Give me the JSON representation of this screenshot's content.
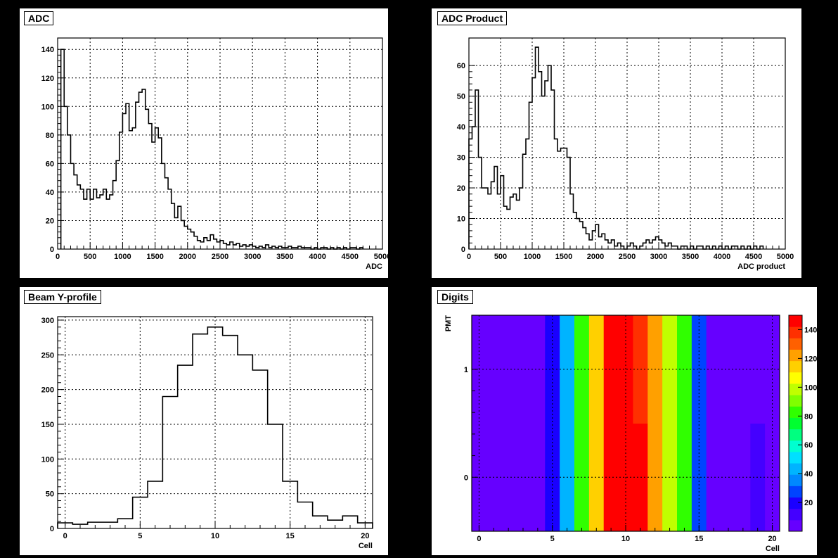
{
  "chart_data": [
    {
      "id": "adc",
      "type": "histogram",
      "title": "ADC",
      "xlabel": "ADC",
      "ylabel": "",
      "xlim": [
        0,
        5000
      ],
      "ylim": [
        0,
        148
      ],
      "xticks": [
        0,
        500,
        1000,
        1500,
        2000,
        2500,
        3000,
        3500,
        4000,
        4500,
        5000
      ],
      "yticks": [
        0,
        20,
        40,
        60,
        80,
        100,
        120,
        140
      ],
      "grid": true,
      "bin_width": 50,
      "x_start": 50,
      "values": [
        140,
        100,
        80,
        60,
        52,
        45,
        42,
        35,
        42,
        35,
        42,
        36,
        38,
        42,
        35,
        38,
        48,
        62,
        82,
        95,
        102,
        83,
        85,
        103,
        110,
        112,
        98,
        88,
        75,
        85,
        78,
        60,
        50,
        42,
        32,
        22,
        30,
        20,
        16,
        14,
        12,
        9,
        6,
        5,
        8,
        6,
        10,
        7,
        5,
        6,
        4,
        3,
        5,
        3,
        4,
        2,
        3,
        2,
        3,
        2,
        1,
        2,
        1,
        3,
        1,
        2,
        1,
        2,
        1,
        1,
        2,
        1,
        1,
        2,
        1,
        1,
        1,
        0,
        1,
        0,
        1,
        1,
        0,
        1,
        0,
        1,
        0,
        1,
        0,
        1,
        1,
        0,
        1
      ]
    },
    {
      "id": "adc-product",
      "type": "histogram",
      "title": "ADC Product",
      "xlabel": "ADC product",
      "ylabel": "",
      "xlim": [
        0,
        5000
      ],
      "ylim": [
        0,
        69
      ],
      "xticks": [
        0,
        500,
        1000,
        1500,
        2000,
        2500,
        3000,
        3500,
        4000,
        4500,
        5000
      ],
      "yticks": [
        0,
        10,
        20,
        30,
        40,
        50,
        60
      ],
      "grid": true,
      "bin_width": 50,
      "x_start": 0,
      "values": [
        36,
        40,
        52,
        30,
        20,
        20,
        18,
        22,
        27,
        18,
        24,
        14,
        13,
        17,
        18,
        16,
        20,
        31,
        36,
        48,
        56,
        66,
        58,
        50,
        55,
        60,
        52,
        36,
        32,
        33,
        33,
        30,
        18,
        12,
        10,
        9,
        7,
        5,
        3,
        6,
        8,
        4,
        5,
        3,
        2,
        3,
        1,
        2,
        1,
        0,
        1,
        2,
        1,
        0,
        1,
        2,
        3,
        2,
        3,
        4,
        3,
        2,
        1,
        2,
        1,
        1,
        0,
        1,
        1,
        0,
        1,
        0,
        1,
        1,
        0,
        1,
        0,
        1,
        0,
        1,
        0,
        1,
        0,
        1,
        1,
        0,
        1,
        0,
        1,
        0,
        1,
        0,
        1
      ]
    },
    {
      "id": "beam-y-profile",
      "type": "histogram",
      "title": "Beam Y-profile",
      "xlabel": "Cell",
      "ylabel": "",
      "xlim": [
        -0.5,
        20.5
      ],
      "ylim": [
        0,
        305
      ],
      "xticks": [
        0,
        5,
        10,
        15,
        20
      ],
      "yticks": [
        0,
        50,
        100,
        150,
        200,
        250,
        300
      ],
      "grid": true,
      "bin_width": 1,
      "x_start": -0.5,
      "values": [
        8,
        6,
        9,
        9,
        14,
        45,
        68,
        190,
        235,
        280,
        290,
        278,
        250,
        228,
        150,
        68,
        38,
        18,
        12,
        18,
        8
      ]
    },
    {
      "id": "digits",
      "type": "heatmap",
      "title": "Digits",
      "xlabel": "Cell",
      "ylabel": "PMT",
      "xlim": [
        -0.5,
        20.5
      ],
      "ylim": [
        -0.5,
        1.5
      ],
      "xticks": [
        0,
        5,
        10,
        15,
        20
      ],
      "yticks": [
        0,
        1
      ],
      "grid": true,
      "z_range": [
        0,
        150
      ],
      "z_ticks": [
        20,
        40,
        60,
        80,
        100,
        120,
        140
      ],
      "columns": 21,
      "rows": 2,
      "values": [
        [
          5,
          5,
          5,
          5,
          5,
          20,
          45,
          85,
          115,
          145,
          150,
          145,
          120,
          100,
          80,
          25,
          5,
          5,
          5,
          10,
          5
        ],
        [
          5,
          5,
          5,
          5,
          5,
          20,
          45,
          85,
          115,
          145,
          145,
          140,
          120,
          100,
          80,
          25,
          5,
          5,
          5,
          5,
          5
        ]
      ]
    }
  ],
  "palette": [
    "#6600ff",
    "#4400ff",
    "#1a00ff",
    "#0044ff",
    "#0088ff",
    "#00b4ff",
    "#00e0ff",
    "#00ffd0",
    "#00ff80",
    "#00ff30",
    "#30ff00",
    "#80ff00",
    "#c0ff00",
    "#ffff00",
    "#ffd000",
    "#ffa000",
    "#ff6000",
    "#ff3000",
    "#ff0000"
  ]
}
